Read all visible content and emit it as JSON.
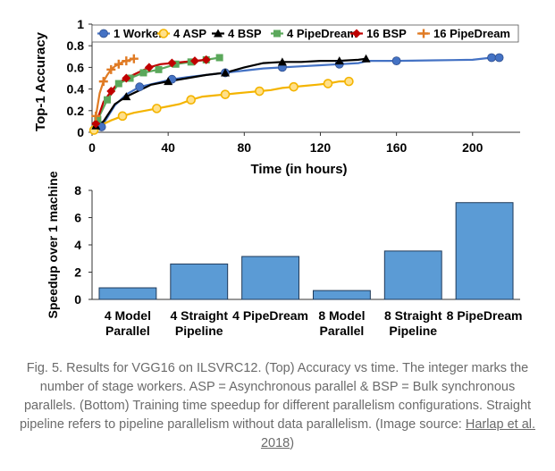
{
  "chart_data": [
    {
      "type": "line",
      "ylabel": "Top-1 Accuracy",
      "xlabel": "Time (in hours)",
      "xlim": [
        0,
        225
      ],
      "ylim": [
        0,
        1
      ],
      "xticks": [
        0,
        40,
        80,
        120,
        160,
        200
      ],
      "yticks": [
        0,
        0.2,
        0.4,
        0.6,
        0.8,
        1
      ],
      "grid": false,
      "legend_position": "top",
      "series": [
        {
          "name": "1 Worker",
          "color": "#4472C4",
          "marker": "circle",
          "x": [
            5,
            12,
            18,
            25,
            30,
            35,
            42,
            50,
            60,
            70,
            80,
            90,
            100,
            110,
            120,
            130,
            140,
            145,
            160,
            180,
            200,
            210,
            214
          ],
          "y": [
            0.05,
            0.25,
            0.35,
            0.42,
            0.44,
            0.46,
            0.49,
            0.51,
            0.53,
            0.55,
            0.57,
            0.59,
            0.6,
            0.61,
            0.62,
            0.63,
            0.64,
            0.66,
            0.66,
            0.665,
            0.67,
            0.69,
            0.69
          ]
        },
        {
          "name": "4 ASP",
          "color": "#F4B400",
          "marker": "circle-open",
          "x": [
            1,
            4,
            10,
            16,
            22,
            28,
            34,
            40,
            46,
            52,
            58,
            64,
            70,
            76,
            82,
            88,
            94,
            100,
            106,
            112,
            118,
            124,
            130,
            135
          ],
          "y": [
            0.02,
            0.06,
            0.11,
            0.15,
            0.18,
            0.2,
            0.22,
            0.24,
            0.26,
            0.3,
            0.33,
            0.34,
            0.35,
            0.36,
            0.37,
            0.38,
            0.39,
            0.41,
            0.42,
            0.43,
            0.44,
            0.45,
            0.47,
            0.47
          ]
        },
        {
          "name": "4 BSP",
          "color": "#000000",
          "marker": "triangle",
          "x": [
            2,
            6,
            12,
            18,
            24,
            31,
            40,
            50,
            60,
            70,
            80,
            90,
            100,
            110,
            120,
            130,
            140,
            144
          ],
          "y": [
            0.06,
            0.1,
            0.26,
            0.33,
            0.38,
            0.44,
            0.47,
            0.5,
            0.53,
            0.55,
            0.6,
            0.64,
            0.65,
            0.65,
            0.66,
            0.66,
            0.67,
            0.68
          ]
        },
        {
          "name": "4 PipeDream",
          "color": "#5BA85B",
          "marker": "square",
          "x": [
            3,
            8,
            14,
            20,
            27,
            35,
            44,
            52,
            60,
            67
          ],
          "y": [
            0.12,
            0.3,
            0.45,
            0.5,
            0.55,
            0.58,
            0.63,
            0.65,
            0.67,
            0.69
          ]
        },
        {
          "name": "16 BSP",
          "color": "#C00000",
          "marker": "diamond",
          "x": [
            2,
            6,
            10,
            14,
            18,
            24,
            30,
            36,
            42,
            48,
            54,
            60
          ],
          "y": [
            0.08,
            0.28,
            0.38,
            0.46,
            0.5,
            0.55,
            0.6,
            0.63,
            0.64,
            0.65,
            0.66,
            0.67
          ]
        },
        {
          "name": "16 PipeDream",
          "color": "#E07B24",
          "marker": "plus",
          "x": [
            2,
            4,
            6,
            8,
            10,
            12,
            14,
            16,
            18,
            20,
            22
          ],
          "y": [
            0.15,
            0.36,
            0.47,
            0.53,
            0.58,
            0.61,
            0.63,
            0.65,
            0.66,
            0.67,
            0.68
          ]
        }
      ]
    },
    {
      "type": "bar",
      "ylabel": "Speedup over 1 machine",
      "ylim": [
        0,
        8
      ],
      "yticks": [
        0,
        2,
        4,
        6,
        8
      ],
      "grid": false,
      "bar_color": "#5B9BD5",
      "categories": [
        [
          "4 Model",
          "Parallel"
        ],
        [
          "4 Straight",
          "Pipeline"
        ],
        [
          "4 PipeDream"
        ],
        [
          "8 Model",
          "Parallel"
        ],
        [
          "8 Straight",
          "Pipeline"
        ],
        [
          "8 PipeDream"
        ]
      ],
      "values": [
        0.85,
        2.6,
        3.15,
        0.65,
        3.55,
        7.1
      ]
    }
  ],
  "caption": {
    "text": "Fig. 5. Results for VGG16 on ILSVRC12. (Top) Accuracy vs time. The integer marks the number of stage workers. ASP = Asynchronous parallel & BSP = Bulk synchronous parallels. (Bottom) Training time speedup for different parallelism configurations. Straight pipeline refers to pipeline parallelism without data parallelism. (Image source: ",
    "link_text": "Harlap et al. 2018",
    "closing": ")"
  }
}
